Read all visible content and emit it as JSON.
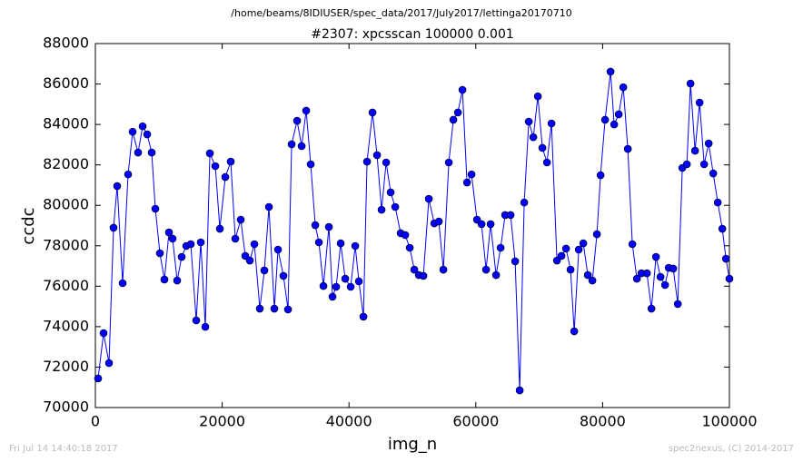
{
  "chart_data": {
    "type": "line",
    "suptitle": "/home/beams/8IDIUSER/spec_data/2017/July2017/lettinga20170710",
    "title": "#2307: xpcsscan 100000 0.001",
    "x_label": "img_n",
    "y_label": "ccdc",
    "footer_left": "Fri Jul 14 14:40:18 2017",
    "footer_right": "spec2nexus, (C) 2014-2017",
    "xlim": [
      0,
      100000
    ],
    "ylim": [
      70000,
      88000
    ],
    "xticks": [
      0,
      20000,
      40000,
      60000,
      80000,
      100000
    ],
    "yticks": [
      70000,
      72000,
      74000,
      76000,
      78000,
      80000,
      82000,
      84000,
      86000,
      88000
    ],
    "series": [
      {
        "color": "#0000ff",
        "x": [
          430,
          1290,
          2150,
          2866,
          3439,
          4299,
          5159,
          5875,
          6735,
          7452,
          8168,
          8885,
          9458,
          10174,
          10891,
          11607,
          12181,
          12897,
          13614,
          14330,
          15047,
          15906,
          16623,
          17339,
          18056,
          18916,
          19632,
          20492,
          21352,
          22068,
          22928,
          23645,
          24361,
          25078,
          25937,
          26654,
          27370,
          28230,
          28803,
          29663,
          30380,
          30953,
          31813,
          32529,
          33246,
          33962,
          34679,
          35252,
          35968,
          36828,
          37401,
          37975,
          38691,
          39408,
          40267,
          40984,
          41557,
          42274,
          42847,
          43707,
          44423,
          45140,
          45856,
          46573,
          47289,
          48149,
          48865,
          49582,
          50298,
          51015,
          51731,
          52591,
          53451,
          54167,
          54884,
          55743,
          56460,
          57176,
          57893,
          58610,
          59326,
          60186,
          60902,
          61619,
          62335,
          63195,
          63911,
          64628,
          65488,
          66204,
          66921,
          67637,
          68354,
          69071,
          69787,
          70504,
          71220,
          71937,
          72796,
          73513,
          74229,
          74946,
          75519,
          76236,
          76952,
          77669,
          78385,
          79102,
          79675,
          80391,
          81251,
          81824,
          82541,
          83257,
          83974,
          84690,
          85407,
          86123,
          86983,
          87699,
          88416,
          89133,
          89849,
          90422,
          91139,
          91855,
          92572,
          93288,
          93862,
          94578,
          95295,
          96011,
          96728,
          97444,
          98161,
          98877,
          99450,
          100000
        ],
        "values": [
          71440,
          73680,
          72200,
          78890,
          80950,
          76150,
          81530,
          83640,
          82610,
          83910,
          83510,
          82610,
          79830,
          77630,
          76330,
          78660,
          78350,
          76280,
          77450,
          77990,
          78080,
          74310,
          78170,
          73990,
          82570,
          81940,
          78840,
          81400,
          82160,
          78350,
          79290,
          77500,
          77270,
          78080,
          74890,
          76780,
          79920,
          74890,
          77810,
          76510,
          74850,
          83020,
          84180,
          82930,
          84680,
          82030,
          79020,
          78170,
          76010,
          78930,
          75480,
          75970,
          78120,
          76370,
          75970,
          77990,
          76240,
          74490,
          82160,
          84590,
          82480,
          79780,
          82120,
          80640,
          79920,
          78620,
          78530,
          77900,
          76820,
          76550,
          76510,
          80320,
          79110,
          79200,
          76820,
          82120,
          84230,
          84590,
          85710,
          81130,
          81530,
          79290,
          79070,
          76820,
          79070,
          76550,
          77900,
          79520,
          79520,
          77230,
          70850,
          80140,
          84140,
          83370,
          85390,
          82840,
          82120,
          84050,
          77270,
          77500,
          77860,
          76820,
          73770,
          77810,
          78120,
          76550,
          76280,
          78570,
          81490,
          84230,
          86610,
          84000,
          84500,
          85840,
          82790,
          78080,
          76370,
          76640,
          76640,
          74890,
          77450,
          76460,
          76060,
          76910,
          76870,
          75120,
          81850,
          82030,
          86020,
          82700,
          85080,
          82030,
          83060,
          81580,
          80140,
          78840,
          77360,
          76370
        ]
      }
    ]
  }
}
